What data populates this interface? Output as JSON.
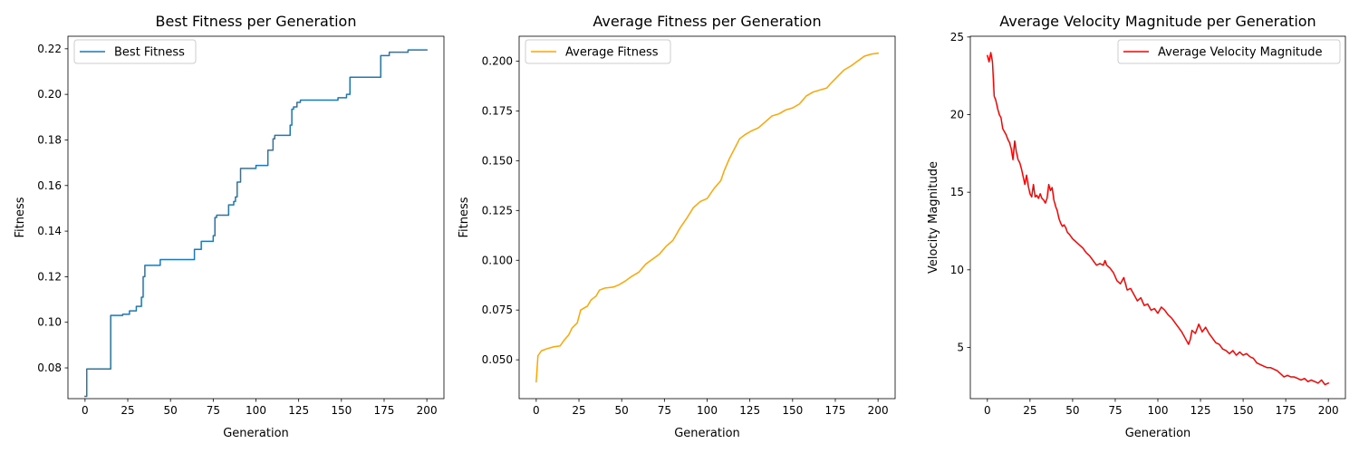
{
  "chart_data": [
    {
      "type": "line",
      "title": "Best Fitness per Generation",
      "xlabel": "Generation",
      "ylabel": "Fitness",
      "xlim": [
        -10,
        210
      ],
      "ylim": [
        0.0665,
        0.2255
      ],
      "xticks": [
        0,
        25,
        50,
        75,
        100,
        125,
        150,
        175,
        200
      ],
      "yticks": [
        0.08,
        0.1,
        0.12,
        0.14,
        0.16,
        0.18,
        0.2,
        0.22
      ],
      "ytick_decimals": 2,
      "legend_position": "upper-left",
      "grid": false,
      "series": [
        {
          "name": "Best Fitness",
          "color": "#1f77b4",
          "step": true,
          "points": [
            [
              0,
              0.0675
            ],
            [
              1,
              0.0795
            ],
            [
              14,
              0.0795
            ],
            [
              15,
              0.103
            ],
            [
              21,
              0.103
            ],
            [
              22,
              0.1035
            ],
            [
              25,
              0.1035
            ],
            [
              26,
              0.105
            ],
            [
              29,
              0.105
            ],
            [
              30,
              0.107
            ],
            [
              32,
              0.107
            ],
            [
              33,
              0.111
            ],
            [
              34,
              0.12
            ],
            [
              35,
              0.125
            ],
            [
              43,
              0.125
            ],
            [
              44,
              0.1275
            ],
            [
              63,
              0.1275
            ],
            [
              64,
              0.132
            ],
            [
              67,
              0.132
            ],
            [
              68,
              0.1355
            ],
            [
              74,
              0.1355
            ],
            [
              75,
              0.138
            ],
            [
              76,
              0.146
            ],
            [
              77,
              0.147
            ],
            [
              83,
              0.147
            ],
            [
              84,
              0.1515
            ],
            [
              86,
              0.1515
            ],
            [
              87,
              0.153
            ],
            [
              88,
              0.155
            ],
            [
              89,
              0.1615
            ],
            [
              90,
              0.1615
            ],
            [
              91,
              0.1675
            ],
            [
              99,
              0.1675
            ],
            [
              100,
              0.1688
            ],
            [
              106,
              0.1688
            ],
            [
              107,
              0.1755
            ],
            [
              109,
              0.1755
            ],
            [
              110,
              0.1805
            ],
            [
              111,
              0.182
            ],
            [
              119,
              0.182
            ],
            [
              120,
              0.1865
            ],
            [
              121,
              0.1935
            ],
            [
              122,
              0.1945
            ],
            [
              124,
              0.1965
            ],
            [
              126,
              0.1975
            ],
            [
              147,
              0.1975
            ],
            [
              148,
              0.1985
            ],
            [
              152,
              0.1985
            ],
            [
              153,
              0.2
            ],
            [
              154,
              0.2
            ],
            [
              155,
              0.2075
            ],
            [
              172,
              0.2075
            ],
            [
              173,
              0.217
            ],
            [
              177,
              0.217
            ],
            [
              178,
              0.2185
            ],
            [
              188,
              0.2185
            ],
            [
              189,
              0.2195
            ],
            [
              200,
              0.2195
            ]
          ]
        }
      ]
    },
    {
      "type": "line",
      "title": "Average Fitness per Generation",
      "xlabel": "Generation",
      "ylabel": "Fitness",
      "xlim": [
        -10,
        210
      ],
      "ylim": [
        0.0305,
        0.2125
      ],
      "xticks": [
        0,
        25,
        50,
        75,
        100,
        125,
        150,
        175,
        200
      ],
      "yticks": [
        0.05,
        0.075,
        0.1,
        0.125,
        0.15,
        0.175,
        0.2
      ],
      "ytick_decimals": 3,
      "legend_position": "upper-left",
      "grid": false,
      "series": [
        {
          "name": "Average Fitness",
          "color": "#ffa500",
          "step": false,
          "points": [
            [
              0,
              0.039
            ],
            [
              1,
              0.052
            ],
            [
              3,
              0.0545
            ],
            [
              6,
              0.0555
            ],
            [
              10,
              0.0565
            ],
            [
              14,
              0.057
            ],
            [
              16,
              0.0595
            ],
            [
              19,
              0.0625
            ],
            [
              21,
              0.066
            ],
            [
              24,
              0.0685
            ],
            [
              26,
              0.075
            ],
            [
              30,
              0.077
            ],
            [
              32,
              0.08
            ],
            [
              35,
              0.082
            ],
            [
              37,
              0.085
            ],
            [
              40,
              0.086
            ],
            [
              45,
              0.0865
            ],
            [
              48,
              0.0875
            ],
            [
              52,
              0.0895
            ],
            [
              56,
              0.092
            ],
            [
              60,
              0.094
            ],
            [
              64,
              0.098
            ],
            [
              68,
              0.1005
            ],
            [
              72,
              0.103
            ],
            [
              76,
              0.107
            ],
            [
              80,
              0.11
            ],
            [
              84,
              0.116
            ],
            [
              88,
              0.121
            ],
            [
              92,
              0.1265
            ],
            [
              96,
              0.1295
            ],
            [
              100,
              0.131
            ],
            [
              104,
              0.136
            ],
            [
              108,
              0.14
            ],
            [
              110,
              0.145
            ],
            [
              113,
              0.151
            ],
            [
              116,
              0.156
            ],
            [
              119,
              0.161
            ],
            [
              122,
              0.163
            ],
            [
              126,
              0.165
            ],
            [
              130,
              0.1665
            ],
            [
              134,
              0.1695
            ],
            [
              138,
              0.1725
            ],
            [
              142,
              0.1735
            ],
            [
              146,
              0.1755
            ],
            [
              150,
              0.1765
            ],
            [
              154,
              0.1785
            ],
            [
              158,
              0.1825
            ],
            [
              162,
              0.1845
            ],
            [
              166,
              0.1855
            ],
            [
              170,
              0.1865
            ],
            [
              172,
              0.1885
            ],
            [
              176,
              0.192
            ],
            [
              180,
              0.1955
            ],
            [
              184,
              0.1975
            ],
            [
              188,
              0.2
            ],
            [
              192,
              0.2025
            ],
            [
              196,
              0.2035
            ],
            [
              200,
              0.204
            ]
          ]
        }
      ]
    },
    {
      "type": "line",
      "title": "Average Velocity Magnitude per Generation",
      "xlabel": "Generation",
      "ylabel": "Velocity Magnitude",
      "xlim": [
        -10,
        210
      ],
      "ylim": [
        1.7,
        25.05
      ],
      "xticks": [
        0,
        25,
        50,
        75,
        100,
        125,
        150,
        175,
        200
      ],
      "yticks": [
        5,
        10,
        15,
        20,
        25
      ],
      "ytick_decimals": 0,
      "legend_position": "upper-right",
      "grid": false,
      "series": [
        {
          "name": "Average Velocity Magnitude",
          "color": "#ff0000",
          "step": false,
          "points": [
            [
              0,
              23.8
            ],
            [
              1,
              23.4
            ],
            [
              2,
              24.0
            ],
            [
              3,
              23.4
            ],
            [
              4,
              21.2
            ],
            [
              5,
              20.9
            ],
            [
              6,
              20.4
            ],
            [
              7,
              20.0
            ],
            [
              8,
              19.8
            ],
            [
              9,
              19.1
            ],
            [
              10,
              18.9
            ],
            [
              11,
              18.7
            ],
            [
              12,
              18.4
            ],
            [
              13,
              18.2
            ],
            [
              14,
              17.8
            ],
            [
              15,
              17.1
            ],
            [
              16,
              18.3
            ],
            [
              17,
              17.6
            ],
            [
              18,
              17.1
            ],
            [
              19,
              16.9
            ],
            [
              20,
              16.5
            ],
            [
              21,
              16.0
            ],
            [
              22,
              15.5
            ],
            [
              23,
              16.1
            ],
            [
              24,
              15.4
            ],
            [
              25,
              14.9
            ],
            [
              26,
              14.7
            ],
            [
              27,
              15.5
            ],
            [
              28,
              14.7
            ],
            [
              29,
              14.8
            ],
            [
              30,
              14.6
            ],
            [
              31,
              14.9
            ],
            [
              32,
              14.6
            ],
            [
              33,
              14.5
            ],
            [
              34,
              14.3
            ],
            [
              35,
              14.6
            ],
            [
              36,
              15.5
            ],
            [
              37,
              15.1
            ],
            [
              38,
              15.3
            ],
            [
              39,
              14.5
            ],
            [
              40,
              14.1
            ],
            [
              41,
              13.8
            ],
            [
              42,
              13.3
            ],
            [
              43,
              13.0
            ],
            [
              44,
              12.8
            ],
            [
              45,
              12.9
            ],
            [
              46,
              12.7
            ],
            [
              47,
              12.4
            ],
            [
              48,
              12.3
            ],
            [
              50,
              12.0
            ],
            [
              52,
              11.8
            ],
            [
              54,
              11.6
            ],
            [
              56,
              11.4
            ],
            [
              58,
              11.1
            ],
            [
              60,
              10.9
            ],
            [
              62,
              10.6
            ],
            [
              64,
              10.3
            ],
            [
              66,
              10.4
            ],
            [
              68,
              10.3
            ],
            [
              69,
              10.6
            ],
            [
              70,
              10.3
            ],
            [
              72,
              10.1
            ],
            [
              74,
              9.8
            ],
            [
              76,
              9.3
            ],
            [
              78,
              9.1
            ],
            [
              80,
              9.5
            ],
            [
              82,
              8.7
            ],
            [
              84,
              8.8
            ],
            [
              86,
              8.4
            ],
            [
              88,
              8.0
            ],
            [
              90,
              8.2
            ],
            [
              92,
              7.7
            ],
            [
              94,
              7.8
            ],
            [
              96,
              7.4
            ],
            [
              98,
              7.5
            ],
            [
              100,
              7.2
            ],
            [
              102,
              7.6
            ],
            [
              104,
              7.4
            ],
            [
              106,
              7.1
            ],
            [
              108,
              6.9
            ],
            [
              110,
              6.6
            ],
            [
              112,
              6.3
            ],
            [
              114,
              6.0
            ],
            [
              116,
              5.6
            ],
            [
              118,
              5.2
            ],
            [
              119,
              5.5
            ],
            [
              120,
              6.1
            ],
            [
              122,
              5.9
            ],
            [
              124,
              6.5
            ],
            [
              126,
              6.0
            ],
            [
              128,
              6.3
            ],
            [
              130,
              5.9
            ],
            [
              132,
              5.6
            ],
            [
              134,
              5.3
            ],
            [
              136,
              5.2
            ],
            [
              138,
              4.9
            ],
            [
              140,
              4.8
            ],
            [
              142,
              4.6
            ],
            [
              144,
              4.8
            ],
            [
              146,
              4.5
            ],
            [
              148,
              4.7
            ],
            [
              150,
              4.5
            ],
            [
              152,
              4.6
            ],
            [
              154,
              4.4
            ],
            [
              156,
              4.3
            ],
            [
              158,
              4.0
            ],
            [
              160,
              3.9
            ],
            [
              162,
              3.8
            ],
            [
              164,
              3.7
            ],
            [
              166,
              3.7
            ],
            [
              168,
              3.6
            ],
            [
              170,
              3.5
            ],
            [
              172,
              3.3
            ],
            [
              174,
              3.1
            ],
            [
              176,
              3.2
            ],
            [
              178,
              3.1
            ],
            [
              180,
              3.1
            ],
            [
              182,
              3.0
            ],
            [
              184,
              2.9
            ],
            [
              186,
              3.0
            ],
            [
              188,
              2.8
            ],
            [
              190,
              2.9
            ],
            [
              192,
              2.8
            ],
            [
              194,
              2.7
            ],
            [
              196,
              2.9
            ],
            [
              198,
              2.6
            ],
            [
              200,
              2.7
            ]
          ]
        }
      ]
    }
  ]
}
